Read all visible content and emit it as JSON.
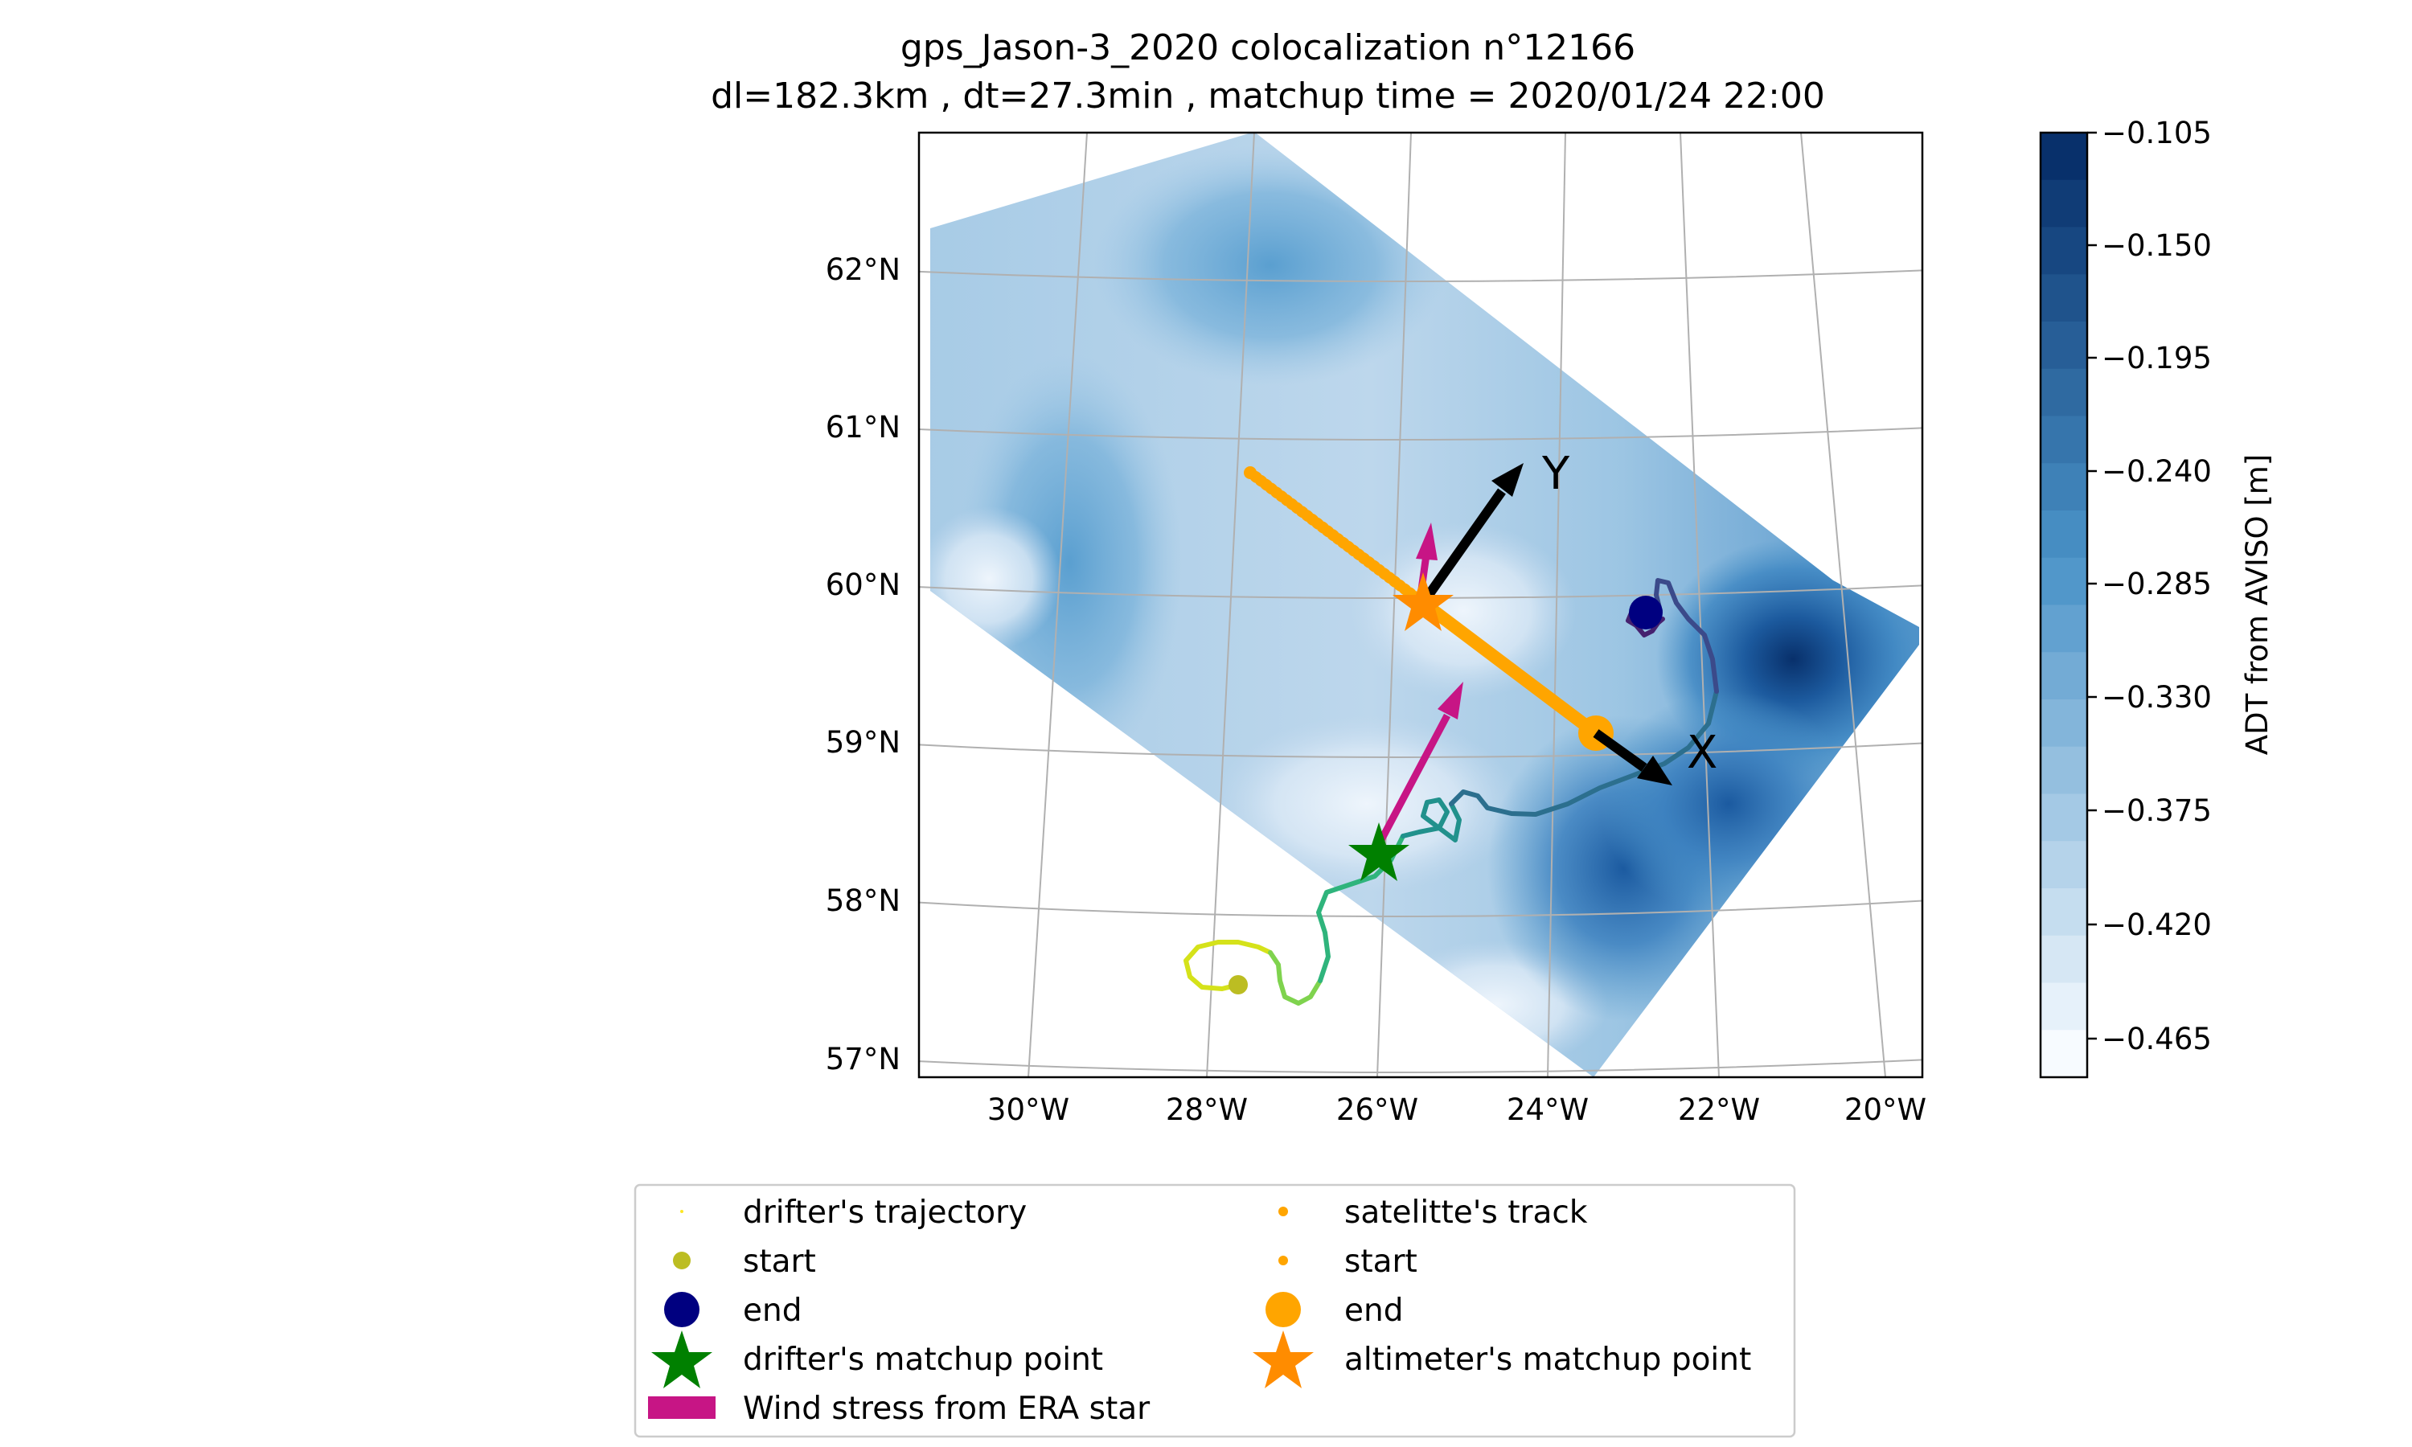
{
  "title": {
    "line1": "gps_Jason-3_2020 colocalization n°12166",
    "line2": "dl=182.3km , dt=27.3min , matchup time = 2020/01/24 22:00"
  },
  "map": {
    "lat_labels": [
      "57°N",
      "58°N",
      "59°N",
      "60°N",
      "61°N",
      "62°N"
    ],
    "lon_labels": [
      "30°W",
      "28°W",
      "26°W",
      "24°W",
      "22°W",
      "20°W"
    ],
    "axis_x_label": "X",
    "axis_y_label": "Y",
    "field_colors": {
      "dark": "#08306b",
      "mid": "#4a93c8",
      "light": "#c6dbef",
      "pale": "#eef5fc"
    }
  },
  "colorbar": {
    "label": "ADT from AVISO [m]",
    "ticks": [
      "−0.105",
      "−0.150",
      "−0.195",
      "−0.240",
      "−0.285",
      "−0.330",
      "−0.375",
      "−0.420",
      "−0.465"
    ],
    "levels": 20,
    "color_top": "#08306b",
    "color_bottom": "#f7fbff"
  },
  "legend": {
    "col1": [
      {
        "label": "drifter's trajectory",
        "marker": "tiny-dot",
        "color": "#fde725"
      },
      {
        "label": "start",
        "marker": "dot",
        "color": "#bcbd22"
      },
      {
        "label": "end",
        "marker": "big-dot",
        "color": "#000080"
      },
      {
        "label": "drifter's matchup point",
        "marker": "star",
        "color": "#008000"
      },
      {
        "label": "Wind stress from ERA star",
        "marker": "bar",
        "color": "#c71585"
      }
    ],
    "col2": [
      {
        "label": "satelitte's track",
        "marker": "dot-small",
        "color": "#ffa500"
      },
      {
        "label": "start",
        "marker": "dot-small",
        "color": "#ffa500"
      },
      {
        "label": "end",
        "marker": "big-dot",
        "color": "#ffa500"
      },
      {
        "label": "altimeter's matchup point",
        "marker": "star",
        "color": "#ff8c00"
      }
    ]
  }
}
